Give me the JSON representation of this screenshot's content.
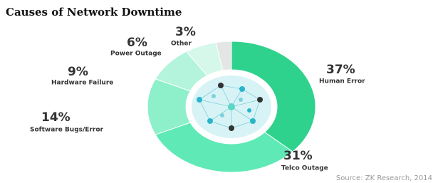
{
  "chart_data": {
    "type": "donut",
    "title": "Causes of Network Downtime",
    "categories": [
      "Human Error",
      "Telco Outage",
      "Software Bugs/Error",
      "Hardware Failure",
      "Power Outage",
      "Other"
    ],
    "values": [
      37,
      31,
      14,
      9,
      6,
      3
    ],
    "value_labels": [
      "37%",
      "31%",
      "14%",
      "9%",
      "6%",
      "3%"
    ],
    "colors": [
      "#2fd28c",
      "#5fe9b6",
      "#8ef0cb",
      "#b4f4dc",
      "#d6f8ea",
      "#e4e6e5"
    ],
    "source": "Source: ZK Research, 2014"
  }
}
